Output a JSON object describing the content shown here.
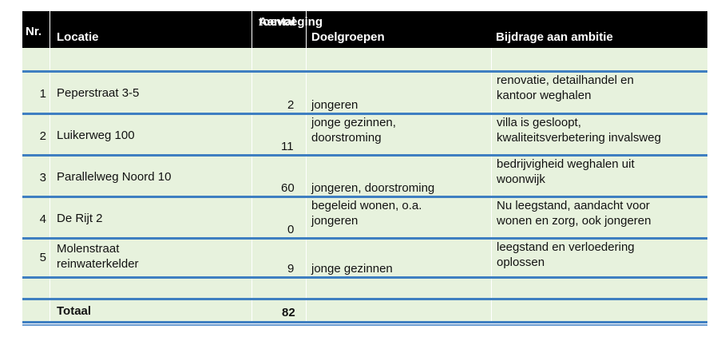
{
  "header": {
    "nr": "Nr.",
    "locatie": "Locatie",
    "aantal_line1": "Aantal",
    "aantal_line2": "toevoeging",
    "doelgroepen": "Doelgroepen",
    "bijdrage": "Bijdrage aan ambitie"
  },
  "rows": [
    {
      "nr": "1",
      "locatie_1": "Peperstraat 3-5",
      "locatie_2": "",
      "aantal": "2",
      "doel_1": "jongeren",
      "doel_2": "",
      "bijdrage_1": "renovatie, detailhandel en",
      "bijdrage_2": "kantoor weghalen"
    },
    {
      "nr": "2",
      "locatie_1": "Luikerweg 100",
      "locatie_2": "",
      "aantal": "11",
      "doel_1": "jonge gezinnen,",
      "doel_2": "doorstroming",
      "bijdrage_1": "villa is gesloopt,",
      "bijdrage_2": "kwaliteitsverbetering invalsweg"
    },
    {
      "nr": "3",
      "locatie_1": "Parallelweg Noord 10",
      "locatie_2": "",
      "aantal": "60",
      "doel_1": "jongeren, doorstroming",
      "doel_2": "",
      "bijdrage_1": "bedrijvigheid weghalen uit",
      "bijdrage_2": "woonwijk"
    },
    {
      "nr": "4",
      "locatie_1": "De Rijt 2",
      "locatie_2": "",
      "aantal": "0",
      "doel_1": "begeleid wonen, o.a.",
      "doel_2": "jongeren",
      "bijdrage_1": "Nu leegstand, aandacht voor",
      "bijdrage_2": "wonen en zorg, ook jongeren"
    },
    {
      "nr": "5",
      "locatie_1": "Molenstraat",
      "locatie_2": "reinwaterkelder",
      "aantal": "9",
      "doel_1": "jonge gezinnen",
      "doel_2": "",
      "bijdrage_1": "leegstand en verloedering",
      "bijdrage_2": "oplossen"
    }
  ],
  "total": {
    "label": "Totaal",
    "value": "82"
  }
}
